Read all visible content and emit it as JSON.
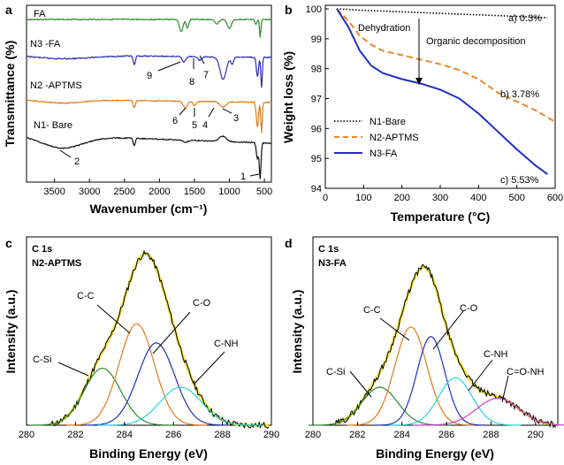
{
  "chart_data": [
    {
      "panel": "a",
      "type": "line",
      "title": "",
      "xlabel": "Wavenumber (cm⁻¹)",
      "ylabel": "Transmittance (%)",
      "xlim": [
        3900,
        400
      ],
      "xticks": [
        3500,
        3000,
        2500,
        2000,
        1500,
        1000,
        500
      ],
      "series": [
        {
          "name": "FA",
          "color": "#2e8b2e"
        },
        {
          "name": "N3 -FA",
          "color": "#2b2bb0"
        },
        {
          "name": "N2 -APTMS",
          "color": "#e07b1a"
        },
        {
          "name": "N1- Bare",
          "color": "#111111"
        }
      ],
      "annotations": [
        "1",
        "2",
        "3",
        "4",
        "5",
        "6",
        "7",
        "8",
        "9"
      ]
    },
    {
      "panel": "b",
      "type": "line",
      "xlabel": "Temperature (°C)",
      "ylabel": "Weight loss (%)",
      "xlim": [
        0,
        600
      ],
      "ylim": [
        94,
        100
      ],
      "xticks": [
        0,
        100,
        200,
        300,
        400,
        500,
        600
      ],
      "yticks": [
        94,
        95,
        96,
        97,
        98,
        99,
        100
      ],
      "series": [
        {
          "name": "N1-Bare",
          "color": "#000000",
          "style": "dotted",
          "x": [
            30,
            100,
            200,
            300,
            400,
            500,
            580
          ],
          "y": [
            100,
            99.95,
            99.9,
            99.85,
            99.8,
            99.75,
            99.7
          ]
        },
        {
          "name": "N2-APTMS",
          "color": "#e58a2a",
          "style": "dashed",
          "x": [
            30,
            60,
            90,
            120,
            150,
            200,
            250,
            300,
            350,
            400,
            450,
            500,
            550,
            600
          ],
          "y": [
            100,
            99.6,
            99.1,
            98.8,
            98.6,
            98.45,
            98.3,
            98.15,
            97.95,
            97.65,
            97.2,
            96.9,
            96.6,
            96.22
          ]
        },
        {
          "name": "N3-FA",
          "color": "#1f2fbf",
          "style": "solid",
          "x": [
            30,
            60,
            90,
            120,
            150,
            200,
            250,
            300,
            350,
            400,
            450,
            500,
            550,
            580
          ],
          "y": [
            100,
            99.4,
            98.6,
            98.1,
            97.85,
            97.65,
            97.5,
            97.3,
            97.0,
            96.5,
            95.9,
            95.3,
            94.75,
            94.47
          ]
        }
      ],
      "annotations": [
        "a) 0.3%",
        "b) 3.78%",
        "c) 5.53%",
        "Dehydration",
        "Organic decomposition"
      ]
    },
    {
      "panel": "c",
      "type": "line",
      "title": "C 1s",
      "subtitle": "N2-APTMS",
      "xlabel": "Binding Energy (eV)",
      "ylabel": "Intensity (a.u.)",
      "xlim": [
        280,
        290
      ],
      "xticks": [
        280,
        282,
        284,
        286,
        288,
        290
      ],
      "peaks": [
        {
          "name": "C-Si",
          "center": 283.1,
          "height": 0.36,
          "sigma": 0.75,
          "color": "#2e8b2e"
        },
        {
          "name": "C-C",
          "center": 284.5,
          "height": 0.64,
          "sigma": 0.72,
          "color": "#e07b1a"
        },
        {
          "name": "C-O",
          "center": 285.3,
          "height": 0.52,
          "sigma": 0.75,
          "color": "#1f2fbf"
        },
        {
          "name": "C-NH",
          "center": 286.3,
          "height": 0.24,
          "sigma": 0.85,
          "color": "#26d4d4"
        }
      ]
    },
    {
      "panel": "d",
      "type": "line",
      "title": "C 1s",
      "subtitle": "N3-FA",
      "xlabel": "Binding Energy (eV)",
      "ylabel": "Intensity (a.u.)",
      "xlim": [
        280,
        291
      ],
      "xticks": [
        280,
        282,
        284,
        286,
        288,
        290
      ],
      "peaks": [
        {
          "name": "C-Si",
          "center": 283.0,
          "height": 0.24,
          "sigma": 0.8,
          "color": "#2e8b2e"
        },
        {
          "name": "C-C",
          "center": 284.4,
          "height": 0.62,
          "sigma": 0.72,
          "color": "#e07b1a"
        },
        {
          "name": "C-O",
          "center": 285.3,
          "height": 0.56,
          "sigma": 0.62,
          "color": "#1f2fbf"
        },
        {
          "name": "C-NH",
          "center": 286.4,
          "height": 0.3,
          "sigma": 0.75,
          "color": "#26d4d4"
        },
        {
          "name": "C=O-NH",
          "center": 288.3,
          "height": 0.17,
          "sigma": 0.95,
          "color": "#d63bd6"
        }
      ]
    }
  ],
  "labels": {
    "panel_a": "a",
    "panel_b": "b",
    "panel_c": "c",
    "panel_d": "d",
    "c_title": "C 1s",
    "c_sub": "N2-APTMS",
    "d_title": "C 1s",
    "d_sub": "N3-FA"
  }
}
